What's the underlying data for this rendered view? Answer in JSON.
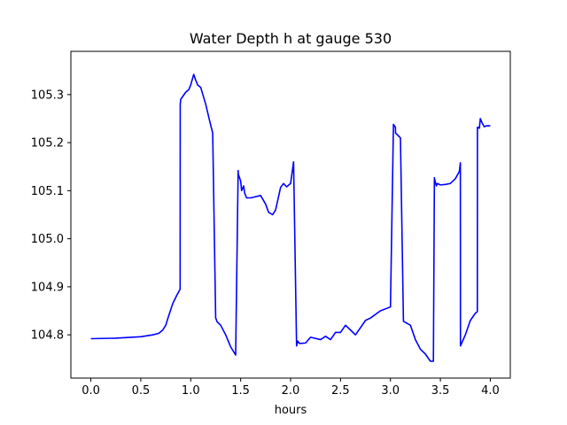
{
  "chart_data": {
    "type": "line",
    "title": "Water Depth h at gauge 530",
    "xlabel": "hours",
    "ylabel": "",
    "xlim": [
      -0.2,
      4.2
    ],
    "ylim": [
      104.71,
      105.39
    ],
    "xticks": [
      0.0,
      0.5,
      1.0,
      1.5,
      2.0,
      2.5,
      3.0,
      3.5,
      4.0
    ],
    "xtick_labels": [
      "0.0",
      "0.5",
      "1.0",
      "1.5",
      "2.0",
      "2.5",
      "3.0",
      "3.5",
      "4.0"
    ],
    "yticks": [
      104.8,
      104.9,
      105.0,
      105.1,
      105.2,
      105.3
    ],
    "ytick_labels": [
      "104.8",
      "104.9",
      "105.0",
      "105.1",
      "105.2",
      "105.3"
    ],
    "grid": false,
    "legend": "none",
    "series": [
      {
        "color": "#0000ff",
        "x": [
          0.0,
          0.25,
          0.5,
          0.62,
          0.68,
          0.72,
          0.75,
          0.78,
          0.82,
          0.86,
          0.894,
          0.895,
          0.9,
          0.95,
          0.98,
          1.0,
          1.03,
          1.05,
          1.07,
          1.1,
          1.15,
          1.19,
          1.22,
          1.25,
          1.26,
          1.261,
          1.3,
          1.35,
          1.4,
          1.45,
          1.475,
          1.476,
          1.5,
          1.51,
          1.52,
          1.53,
          1.54,
          1.55,
          1.56,
          1.6,
          1.7,
          1.75,
          1.78,
          1.82,
          1.85,
          1.9,
          1.93,
          1.96,
          2.0,
          2.03,
          2.06,
          2.07,
          2.071,
          2.09,
          2.15,
          2.2,
          2.3,
          2.35,
          2.4,
          2.45,
          2.5,
          2.55,
          2.6,
          2.65,
          2.7,
          2.75,
          2.8,
          2.9,
          3.0,
          3.03,
          3.05,
          3.051,
          3.1,
          3.13,
          3.131,
          3.2,
          3.25,
          3.3,
          3.35,
          3.4,
          3.43,
          3.44,
          3.441,
          3.46,
          3.47,
          3.5,
          3.55,
          3.6,
          3.65,
          3.69,
          3.7,
          3.701,
          3.75,
          3.8,
          3.85,
          3.87,
          3.871,
          3.89,
          3.9,
          3.92,
          3.94,
          3.96,
          4.0
        ],
        "y": [
          104.792,
          104.793,
          104.796,
          104.8,
          104.803,
          104.81,
          104.82,
          104.84,
          104.865,
          104.882,
          104.895,
          105.28,
          105.29,
          105.305,
          105.31,
          105.32,
          105.342,
          105.33,
          105.32,
          105.315,
          105.28,
          105.245,
          105.22,
          104.835,
          104.83,
          104.828,
          104.82,
          104.8,
          104.775,
          104.758,
          105.142,
          105.135,
          105.12,
          105.1,
          105.105,
          105.11,
          105.095,
          105.09,
          105.085,
          105.085,
          105.09,
          105.072,
          105.055,
          105.05,
          105.06,
          105.107,
          105.115,
          105.108,
          105.115,
          105.16,
          104.777,
          104.785,
          104.787,
          104.782,
          104.783,
          104.795,
          104.79,
          104.797,
          104.79,
          104.805,
          104.805,
          104.82,
          104.81,
          104.8,
          104.815,
          104.83,
          104.835,
          104.85,
          104.858,
          105.238,
          105.232,
          105.22,
          105.21,
          104.83,
          104.828,
          104.82,
          104.79,
          104.77,
          104.76,
          104.745,
          104.745,
          105.127,
          105.125,
          105.11,
          105.115,
          105.112,
          105.113,
          105.115,
          105.125,
          105.14,
          105.158,
          104.777,
          104.8,
          104.83,
          104.845,
          104.848,
          105.232,
          105.23,
          105.25,
          105.24,
          105.233,
          105.235,
          105.235
        ]
      }
    ]
  }
}
